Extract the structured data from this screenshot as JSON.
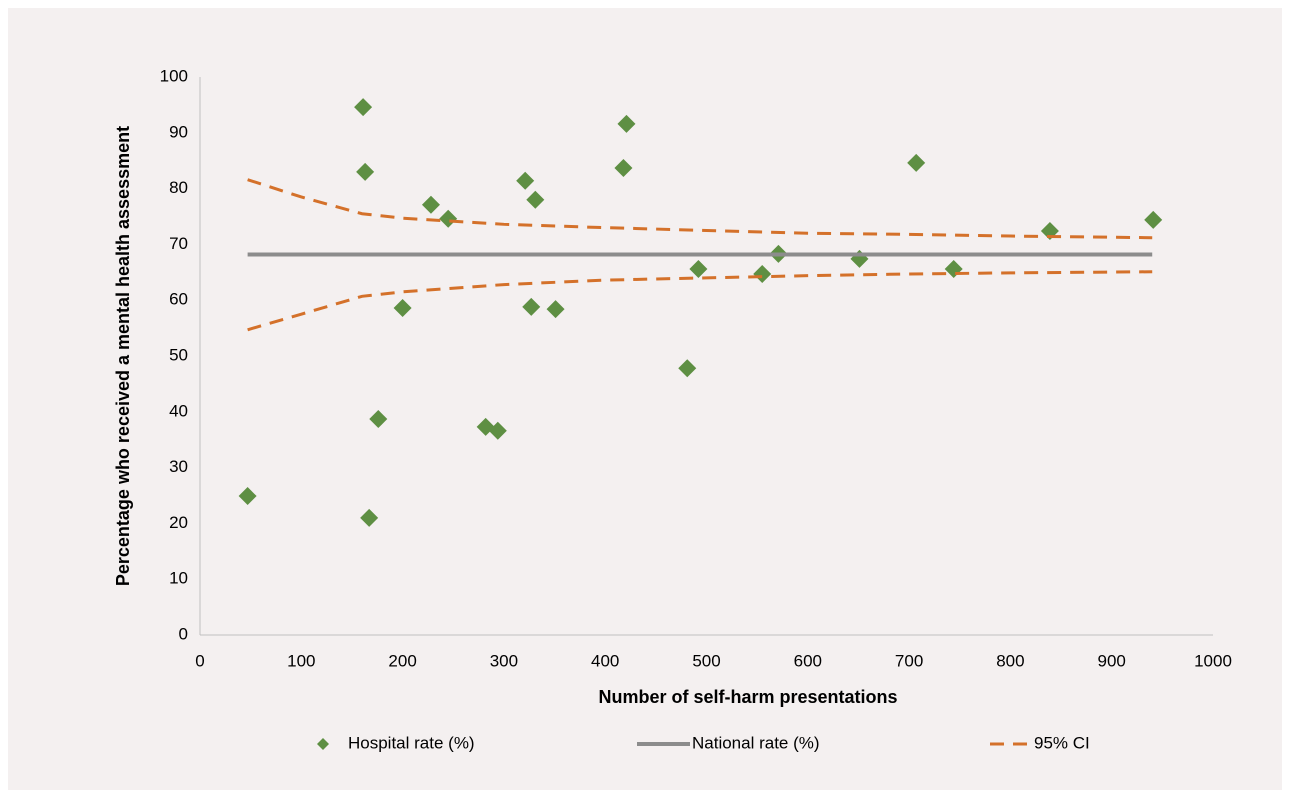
{
  "chart_data": {
    "type": "scatter",
    "xlabel": "Number of self-harm presentations",
    "ylabel": "Percentage who received a mental health assessment",
    "xlim": [
      0,
      1000
    ],
    "xticks": [
      0,
      100,
      200,
      300,
      400,
      500,
      600,
      700,
      800,
      900,
      1000
    ],
    "ylim": [
      0,
      100
    ],
    "yticks": [
      0,
      10,
      20,
      30,
      40,
      50,
      60,
      70,
      80,
      90,
      100
    ],
    "grid": false,
    "legend": "bottom",
    "series": [
      {
        "name": "Hospital rate (%)",
        "color": "#5e8f43",
        "marker": "diamond",
        "x": [
          47,
          161,
          163,
          167,
          176,
          200,
          228,
          245,
          282,
          294,
          321,
          327,
          331,
          351,
          418,
          421,
          481,
          492,
          555,
          571,
          651,
          707,
          744,
          839,
          941
        ],
        "values": [
          24.9,
          94.6,
          83,
          21,
          38.7,
          58.6,
          77.1,
          74.6,
          37.3,
          36.6,
          81.4,
          58.8,
          78,
          58.4,
          83.7,
          91.6,
          47.8,
          65.6,
          64.7,
          68.3,
          67.4,
          84.6,
          65.6,
          72.4,
          74.4
        ]
      },
      {
        "name": "National rate (%)",
        "color": "#8c8c8c",
        "marker": "line",
        "x": [
          47,
          940
        ],
        "values": [
          68.2,
          68.2
        ]
      },
      {
        "name": "95% CI",
        "color": "#d4712a",
        "marker": "dashed",
        "x": [
          47,
          100,
          160,
          200,
          300,
          400,
          500,
          600,
          700,
          800,
          940
        ],
        "values": [
          81.6,
          78.5,
          75.5,
          74.7,
          73.6,
          73,
          72.5,
          72,
          71.8,
          71.5,
          71.2
        ],
        "lower": [
          54.7,
          57.5,
          60.7,
          61.5,
          62.8,
          63.6,
          64,
          64.4,
          64.7,
          64.9,
          65.1
        ]
      }
    ]
  }
}
